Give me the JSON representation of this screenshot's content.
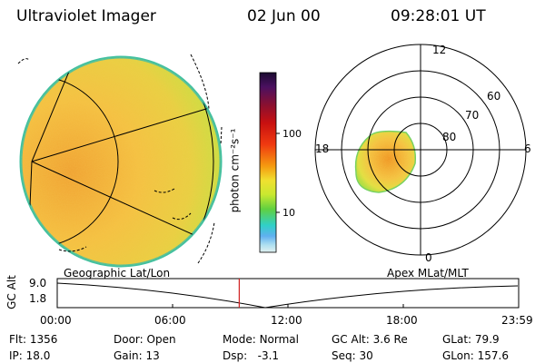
{
  "header": {
    "instrument": "Ultraviolet Imager",
    "date": "02 Jun 00",
    "time": "09:28:01 UT"
  },
  "left_panel": {
    "label": "Geographic Lat/Lon"
  },
  "right_panel": {
    "label": "Apex MLat/MLT",
    "mlt_labels": [
      "12",
      "18",
      "6",
      "0"
    ],
    "lat_labels": [
      "60",
      "70",
      "80"
    ]
  },
  "colorbar": {
    "unit_label": "photon cm⁻²s⁻¹",
    "ticks": [
      "100",
      "10"
    ],
    "colors_top_to_bottom": [
      "#1a0a30",
      "#4b1060",
      "#8a1030",
      "#c81010",
      "#f03a10",
      "#f59a10",
      "#f0e030",
      "#c8e830",
      "#60d040",
      "#30d0c8",
      "#60b0f0",
      "#b0e0f0",
      "#e0f0f0"
    ]
  },
  "timeline": {
    "y_axis_label": "GC Alt",
    "y_ticks": [
      "9.0",
      "1.8"
    ],
    "x_ticks": [
      "00:00",
      "06:00",
      "12:00",
      "18:00",
      "23:59"
    ],
    "current_time": "09:28",
    "marker_color": "#d02020"
  },
  "status": {
    "flt": {
      "label": "Flt:",
      "value": "1356"
    },
    "ip": {
      "label": "IP:",
      "value": "18.0"
    },
    "door": {
      "label": "Door:",
      "value": "Open"
    },
    "gain": {
      "label": "Gain:",
      "value": "13"
    },
    "mode": {
      "label": "Mode:",
      "value": "Normal"
    },
    "dsp": {
      "label": "Dsp:",
      "value": "-3.1"
    },
    "gcalt": {
      "label": "GC Alt:",
      "value": "3.6 Re"
    },
    "seq": {
      "label": "Seq:",
      "value": "30"
    },
    "glat": {
      "label": "GLat:",
      "value": "79.9"
    },
    "glon": {
      "label": "GLon:",
      "value": "157.6"
    }
  }
}
